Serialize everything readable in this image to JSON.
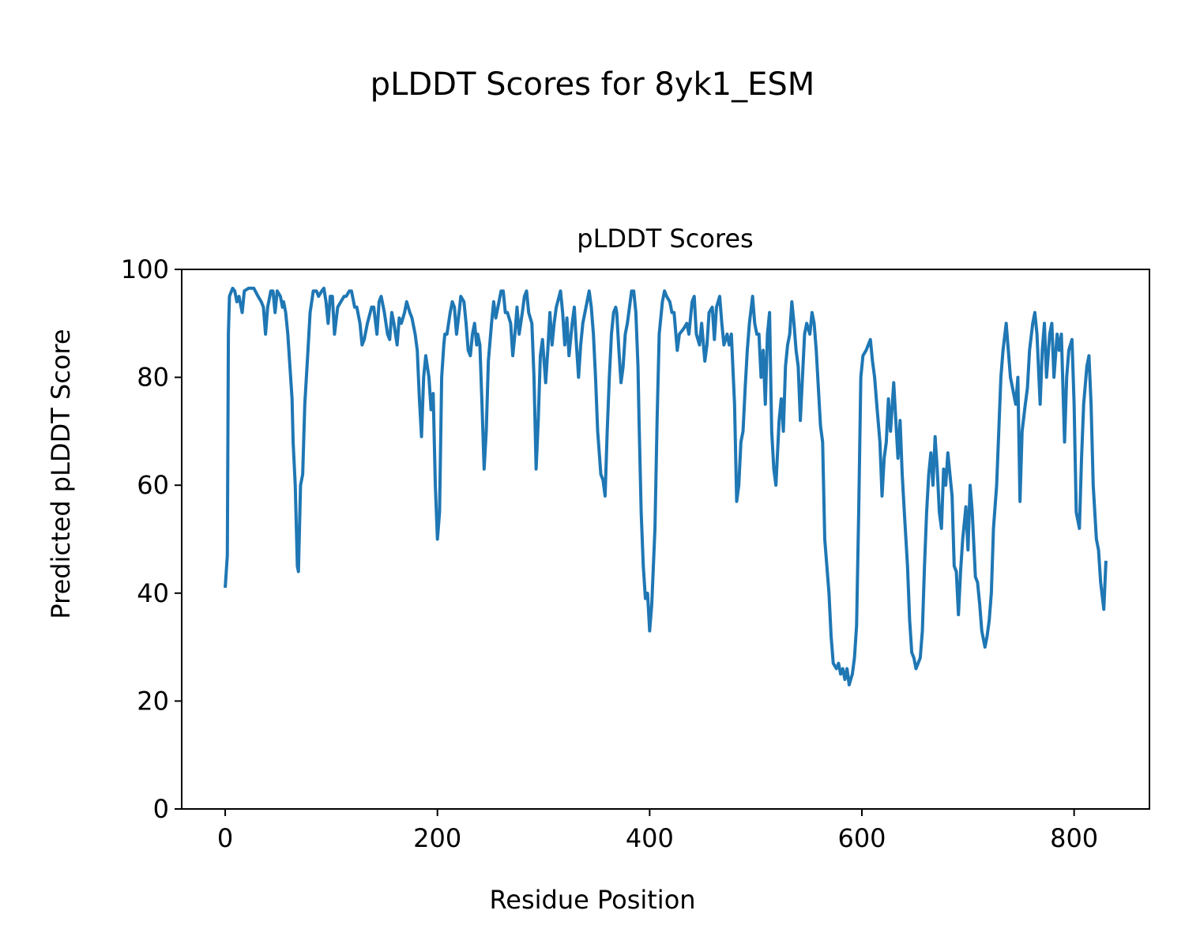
{
  "chart_data": {
    "type": "line",
    "title": "pLDDT Scores for 8yk1_ESM",
    "subtitle": "pLDDT Scores",
    "x_label": "Residue Position",
    "y_label": "Predicted pLDDT Score",
    "color": "#1f77b4",
    "xlim": [
      -41,
      871
    ],
    "xticks": [
      0,
      200,
      400,
      600,
      800
    ],
    "ylim": [
      0,
      100
    ],
    "yticks": [
      0,
      20,
      40,
      60,
      80,
      100
    ],
    "grid": false,
    "x": [
      0,
      2,
      3,
      4,
      7,
      9,
      11,
      13,
      16,
      18,
      22,
      27,
      31,
      34,
      36,
      38,
      40,
      43,
      45,
      47,
      49,
      52,
      54,
      55,
      57,
      59,
      61,
      63,
      64,
      66,
      68,
      69,
      71,
      73,
      75,
      78,
      80,
      83,
      86,
      88,
      91,
      93,
      95,
      97,
      99,
      101,
      103,
      106,
      109,
      112,
      114,
      117,
      119,
      122,
      124,
      127,
      129,
      131,
      134,
      138,
      140,
      143,
      145,
      147,
      150,
      153,
      155,
      157,
      159,
      162,
      164,
      166,
      169,
      171,
      174,
      176,
      179,
      181,
      183,
      185,
      187,
      189,
      192,
      194,
      196,
      198,
      200,
      202,
      204,
      206,
      207,
      209,
      212,
      214,
      216,
      218,
      221,
      222,
      225,
      227,
      229,
      231,
      233,
      235,
      237,
      238,
      240,
      242,
      244,
      246,
      248,
      251,
      253,
      255,
      257,
      260,
      262,
      264,
      266,
      269,
      271,
      273,
      275,
      277,
      280,
      282,
      284,
      286,
      289,
      291,
      293,
      295,
      297,
      299,
      302,
      304,
      306,
      308,
      310,
      312,
      316,
      318,
      320,
      322,
      324,
      327,
      329,
      331,
      333,
      335,
      337,
      340,
      343,
      345,
      347,
      349,
      351,
      354,
      356,
      358,
      360,
      362,
      364,
      366,
      368,
      369,
      371,
      373,
      375,
      377,
      379,
      381,
      383,
      385,
      387,
      389,
      390,
      392,
      394,
      396,
      398,
      400,
      402,
      405,
      407,
      409,
      412,
      414,
      416,
      419,
      421,
      423,
      426,
      428,
      432,
      435,
      437,
      440,
      442,
      444,
      447,
      449,
      452,
      454,
      456,
      459,
      461,
      463,
      466,
      468,
      470,
      473,
      475,
      477,
      480,
      482,
      484,
      486,
      488,
      490,
      492,
      494,
      497,
      499,
      501,
      503,
      505,
      507,
      509,
      511,
      513,
      515,
      517,
      519,
      522,
      524,
      526,
      528,
      530,
      532,
      534,
      536,
      538,
      540,
      542,
      544,
      546,
      548,
      551,
      553,
      555,
      557,
      559,
      561,
      563,
      565,
      567,
      569,
      571,
      573,
      576,
      578,
      580,
      582,
      584,
      586,
      588,
      591,
      593,
      595,
      597,
      599,
      601,
      604,
      606,
      608,
      610,
      612,
      614,
      617,
      619,
      621,
      623,
      625,
      627,
      630,
      632,
      634,
      636,
      638,
      640,
      643,
      645,
      647,
      649,
      651,
      653,
      655,
      657,
      659,
      661,
      663,
      665,
      667,
      669,
      671,
      673,
      675,
      677,
      679,
      681,
      683,
      685,
      687,
      689,
      691,
      693,
      695,
      698,
      700,
      702,
      704,
      707,
      709,
      711,
      713,
      716,
      718,
      720,
      722,
      724,
      727,
      729,
      731,
      733,
      736,
      738,
      740,
      742,
      745,
      747,
      749,
      751,
      754,
      756,
      758,
      761,
      763,
      765,
      768,
      770,
      772,
      774,
      777,
      779,
      781,
      784,
      786,
      788,
      791,
      793,
      795,
      798,
      800,
      802,
      805,
      807,
      809,
      812,
      814,
      816,
      818,
      821,
      823,
      825,
      828,
      830
    ],
    "values": [
      41,
      47,
      88,
      95,
      96.5,
      96,
      94,
      95,
      92,
      96,
      96.5,
      96.5,
      95,
      94,
      93,
      88,
      93,
      96,
      96,
      92,
      96,
      95,
      93,
      94,
      92,
      88,
      82,
      76,
      68,
      60,
      45,
      44,
      60,
      62,
      75,
      85,
      92,
      96,
      96,
      95,
      96,
      96.5,
      94,
      90,
      95,
      95,
      88,
      93,
      94,
      95,
      95,
      96,
      96,
      93,
      93,
      90,
      86,
      87,
      90,
      93,
      93,
      88,
      94,
      95,
      92,
      88,
      87,
      92,
      90,
      86,
      91,
      90,
      92,
      94,
      92,
      91,
      88,
      85,
      76,
      69,
      80,
      84,
      80,
      74,
      77,
      60,
      50,
      55,
      80,
      86,
      88,
      88,
      92,
      94,
      93,
      88,
      93,
      95,
      94,
      90,
      85,
      84,
      88,
      90,
      86,
      88,
      86,
      75,
      63,
      70,
      83,
      90,
      94,
      91,
      93,
      96,
      96,
      92,
      92,
      90,
      84,
      88,
      93,
      88,
      92,
      95,
      96,
      92,
      90,
      80,
      63,
      72,
      84,
      87,
      79,
      85,
      92,
      86,
      90,
      93,
      96,
      92,
      86,
      91,
      84,
      90,
      93,
      86,
      80,
      86,
      90,
      93,
      96,
      93,
      88,
      80,
      70,
      62,
      61,
      58,
      70,
      80,
      88,
      92,
      93,
      92,
      85,
      79,
      82,
      88,
      90,
      93,
      96,
      96,
      92,
      82,
      72,
      55,
      45,
      39,
      40,
      33,
      38,
      52,
      72,
      88,
      94,
      96,
      95,
      94,
      92,
      92,
      85,
      88,
      89,
      90,
      88,
      94,
      95,
      88,
      86,
      90,
      83,
      86,
      92,
      93,
      87,
      93,
      95,
      90,
      86,
      88,
      86,
      88,
      75,
      57,
      60,
      68,
      70,
      78,
      85,
      90,
      95,
      90,
      88,
      88,
      80,
      85,
      75,
      88,
      92,
      70,
      63,
      60,
      72,
      76,
      70,
      82,
      86,
      88,
      94,
      90,
      85,
      82,
      72,
      80,
      88,
      90,
      88,
      92,
      90,
      85,
      78,
      71,
      68,
      50,
      45,
      40,
      32,
      27,
      26,
      27,
      25,
      26,
      24,
      26,
      23,
      25,
      28,
      34,
      55,
      80,
      84,
      85,
      86,
      87,
      83,
      80,
      75,
      68,
      58,
      65,
      68,
      76,
      70,
      79,
      72,
      65,
      72,
      62,
      55,
      45,
      35,
      29,
      28,
      26,
      27,
      28,
      33,
      45,
      55,
      62,
      66,
      60,
      69,
      63,
      55,
      52,
      63,
      60,
      66,
      62,
      58,
      45,
      44,
      36,
      44,
      50,
      56,
      48,
      60,
      55,
      43,
      42,
      38,
      33,
      30,
      32,
      35,
      40,
      52,
      60,
      70,
      80,
      85,
      90,
      85,
      80,
      78,
      75,
      80,
      57,
      70,
      75,
      78,
      85,
      90,
      92,
      88,
      75,
      85,
      90,
      80,
      88,
      90,
      80,
      88,
      85,
      88,
      68,
      80,
      85,
      87,
      75,
      55,
      52,
      65,
      75,
      82,
      84,
      75,
      60,
      50,
      48,
      42,
      37,
      46
    ]
  }
}
